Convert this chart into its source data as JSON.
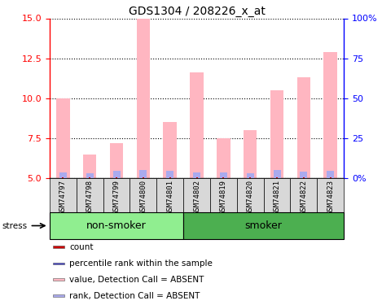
{
  "title": "GDS1304 / 208226_x_at",
  "samples": [
    "GSM74797",
    "GSM74798",
    "GSM74799",
    "GSM74800",
    "GSM74801",
    "GSM74802",
    "GSM74819",
    "GSM74820",
    "GSM74821",
    "GSM74822",
    "GSM74823"
  ],
  "pink_values": [
    10.0,
    6.5,
    7.2,
    15.0,
    8.5,
    11.6,
    7.5,
    8.0,
    10.5,
    11.3,
    12.9
  ],
  "blue_rank_values": [
    5.35,
    5.3,
    5.5,
    5.55,
    5.5,
    5.4,
    5.35,
    5.3,
    5.55,
    5.45,
    5.5
  ],
  "red_count_values": [
    5.05,
    5.05,
    5.05,
    5.05,
    5.05,
    5.05,
    5.05,
    5.05,
    5.05,
    5.05,
    5.05
  ],
  "groups": [
    {
      "label": "non-smoker",
      "start": 0,
      "end": 5,
      "color": "#90ee90"
    },
    {
      "label": "smoker",
      "start": 5,
      "end": 11,
      "color": "#4CAF50"
    }
  ],
  "ylim_left": [
    5,
    15
  ],
  "ylim_right": [
    0,
    100
  ],
  "yticks_left": [
    5,
    7.5,
    10,
    12.5,
    15
  ],
  "yticks_right": [
    0,
    25,
    50,
    75,
    100
  ],
  "ytick_labels_right": [
    "0%",
    "25",
    "50",
    "75",
    "100%"
  ],
  "pink_color": "#FFB6C1",
  "blue_color": "#aaaaee",
  "red_color": "#cc0000",
  "blue_legend_color": "#4444cc",
  "bar_width": 0.5,
  "base_value": 5.0,
  "stress_label": "stress",
  "title_fontsize": 10,
  "axis_label_fontsize": 8,
  "sample_fontsize": 6.5,
  "legend_fontsize": 7.5,
  "group_fontsize": 9
}
